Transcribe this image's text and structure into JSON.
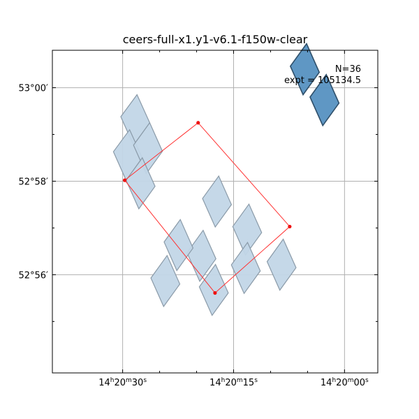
{
  "chart_data": {
    "type": "scatter",
    "title": "ceers-full-x1.y1-v6.1-f150w-clear",
    "annotation": {
      "count_label": "N=36",
      "expt_label": "expt = 105134.5"
    },
    "x_axis": {
      "ticks": [
        {
          "sec": 30,
          "label": "14h20m30s"
        },
        {
          "sec": 15,
          "label": "14h20m15s"
        },
        {
          "sec": 0,
          "label": "14h20m00s"
        }
      ],
      "minor_ticks_sec": [
        25,
        20,
        10,
        5
      ],
      "range_sec": [
        39.5,
        -4.5
      ]
    },
    "y_axis": {
      "ticks": [
        {
          "arcmin": 60,
          "label": "53°00′"
        },
        {
          "arcmin": 58,
          "label": "52°58′"
        },
        {
          "arcmin": 56,
          "label": "52°56′"
        }
      ],
      "minor_ticks_arcmin": [
        59,
        57,
        55
      ],
      "range_arcmin": [
        53.9,
        60.8
      ]
    },
    "grid": true,
    "colors": {
      "light_tile_fill": "#c2d6e7",
      "light_tile_edge": "#8a9aa8",
      "dark_tile_fill": "#5691c1",
      "dark_tile_edge": "#2f4f6a",
      "outline": "#ff3333",
      "grid": "#b0b0b0"
    },
    "exposure_tiles": [
      {
        "shade": "light",
        "corners": [
          [
            30.25,
            59.38
          ],
          [
            28.53,
            58.77
          ],
          [
            26.34,
            59.25
          ],
          [
            28.06,
            59.85
          ]
        ]
      },
      {
        "shade": "light",
        "corners": [
          [
            31.25,
            58.63
          ],
          [
            29.53,
            58.02
          ],
          [
            27.34,
            58.5
          ],
          [
            29.06,
            59.1
          ]
        ]
      },
      {
        "shade": "light",
        "corners": [
          [
            28.53,
            58.77
          ],
          [
            26.81,
            58.16
          ],
          [
            24.62,
            58.64
          ],
          [
            26.34,
            59.25
          ]
        ]
      },
      {
        "shade": "light",
        "corners": [
          [
            29.53,
            58.02
          ],
          [
            27.81,
            57.41
          ],
          [
            25.62,
            57.89
          ],
          [
            27.34,
            58.5
          ]
        ]
      },
      {
        "shade": "light",
        "corners": [
          [
            26.18,
            55.93
          ],
          [
            24.46,
            55.32
          ],
          [
            22.27,
            55.8
          ],
          [
            23.99,
            56.41
          ]
        ]
      },
      {
        "shade": "light",
        "corners": [
          [
            21.3,
            56.47
          ],
          [
            19.58,
            55.86
          ],
          [
            17.39,
            56.34
          ],
          [
            19.11,
            56.95
          ]
        ]
      },
      {
        "shade": "light",
        "corners": [
          [
            24.39,
            56.7
          ],
          [
            22.67,
            56.09
          ],
          [
            20.48,
            56.57
          ],
          [
            22.2,
            57.18
          ]
        ]
      },
      {
        "shade": "light",
        "corners": [
          [
            19.63,
            55.74
          ],
          [
            17.91,
            55.13
          ],
          [
            15.72,
            55.61
          ],
          [
            17.44,
            56.22
          ]
        ]
      },
      {
        "shade": "light",
        "corners": [
          [
            19.2,
            57.63
          ],
          [
            17.48,
            57.02
          ],
          [
            15.29,
            57.5
          ],
          [
            17.01,
            58.11
          ]
        ]
      },
      {
        "shade": "light",
        "corners": [
          [
            15.11,
            57.03
          ],
          [
            13.39,
            56.42
          ],
          [
            11.2,
            56.9
          ],
          [
            12.92,
            57.51
          ]
        ]
      },
      {
        "shade": "light",
        "corners": [
          [
            15.3,
            56.21
          ],
          [
            13.58,
            55.6
          ],
          [
            11.39,
            56.08
          ],
          [
            13.11,
            56.69
          ]
        ]
      },
      {
        "shade": "light",
        "corners": [
          [
            10.47,
            56.28
          ],
          [
            8.75,
            55.67
          ],
          [
            6.56,
            56.15
          ],
          [
            8.28,
            56.76
          ]
        ]
      },
      {
        "shade": "dark",
        "corners": [
          [
            7.32,
            60.46
          ],
          [
            5.6,
            59.85
          ],
          [
            3.41,
            60.33
          ],
          [
            5.13,
            60.94
          ]
        ]
      },
      {
        "shade": "dark",
        "corners": [
          [
            4.66,
            59.8
          ],
          [
            2.94,
            59.19
          ],
          [
            0.75,
            59.67
          ],
          [
            2.47,
            60.28
          ]
        ]
      }
    ],
    "outline_polygon": [
      [
        29.72,
        58.02
      ],
      [
        19.79,
        59.25
      ],
      [
        7.41,
        57.03
      ],
      [
        17.51,
        55.61
      ]
    ]
  }
}
